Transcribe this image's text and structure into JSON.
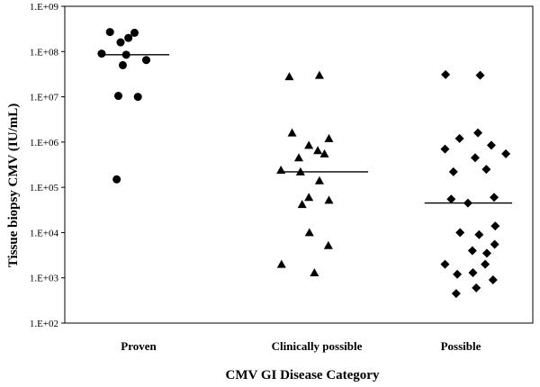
{
  "chart_data": {
    "type": "scatter",
    "ylabel": "Tissue biopsy CMV (IU/mL)",
    "xlabel": "CMV GI Disease Category",
    "y_scale": "log",
    "ylim": [
      100,
      1000000000
    ],
    "y_ticks": [
      "1.E+02",
      "1.E+03",
      "1.E+04",
      "1.E+05",
      "1.E+06",
      "1.E+07",
      "1.E+08",
      "1.E+09"
    ],
    "grid": false,
    "categories": [
      "Proven",
      "Clinically possible",
      "Possible"
    ],
    "series": [
      {
        "category": "Proven",
        "marker": "circle",
        "median": 85000000,
        "points": [
          {
            "x": -0.19,
            "y": 270000000
          },
          {
            "x": 0.25,
            "y": 260000000
          },
          {
            "x": 0.14,
            "y": 200000000
          },
          {
            "x": 0.0,
            "y": 160000000
          },
          {
            "x": -0.34,
            "y": 90000000
          },
          {
            "x": 0.1,
            "y": 85000000
          },
          {
            "x": 0.46,
            "y": 65000000
          },
          {
            "x": 0.04,
            "y": 50000000
          },
          {
            "x": -0.04,
            "y": 10500000
          },
          {
            "x": 0.31,
            "y": 10000000
          },
          {
            "x": -0.07,
            "y": 150000
          }
        ]
      },
      {
        "category": "Clinically possible",
        "marker": "triangle",
        "median": 220000,
        "points": [
          {
            "x": -0.17,
            "y": 28000000
          },
          {
            "x": 0.37,
            "y": 30000000
          },
          {
            "x": -0.12,
            "y": 1600000
          },
          {
            "x": 0.54,
            "y": 1200000
          },
          {
            "x": 0.18,
            "y": 850000
          },
          {
            "x": 0.34,
            "y": 650000
          },
          {
            "x": 0.46,
            "y": 550000
          },
          {
            "x": 0.0,
            "y": 450000
          },
          {
            "x": -0.32,
            "y": 240000
          },
          {
            "x": 0.03,
            "y": 220000
          },
          {
            "x": 0.37,
            "y": 140000
          },
          {
            "x": 0.18,
            "y": 60000
          },
          {
            "x": 0.54,
            "y": 52000
          },
          {
            "x": 0.06,
            "y": 42000
          },
          {
            "x": 0.19,
            "y": 10000
          },
          {
            "x": 0.53,
            "y": 5200
          },
          {
            "x": -0.31,
            "y": 2000
          },
          {
            "x": 0.28,
            "y": 1300
          }
        ]
      },
      {
        "category": "Possible",
        "marker": "diamond",
        "median": 45000,
        "points": [
          {
            "x": 0.05,
            "y": 31000000
          },
          {
            "x": 0.67,
            "y": 30000000
          },
          {
            "x": 0.63,
            "y": 1600000
          },
          {
            "x": 0.3,
            "y": 1200000
          },
          {
            "x": 0.87,
            "y": 850000
          },
          {
            "x": 0.04,
            "y": 700000
          },
          {
            "x": 1.13,
            "y": 550000
          },
          {
            "x": 0.58,
            "y": 450000
          },
          {
            "x": 0.78,
            "y": 250000
          },
          {
            "x": 0.19,
            "y": 220000
          },
          {
            "x": 0.92,
            "y": 60000
          },
          {
            "x": 0.15,
            "y": 55000
          },
          {
            "x": 0.45,
            "y": 45000
          },
          {
            "x": 0.94,
            "y": 14000
          },
          {
            "x": 0.31,
            "y": 10000
          },
          {
            "x": 0.65,
            "y": 9000
          },
          {
            "x": 0.93,
            "y": 5500
          },
          {
            "x": 0.53,
            "y": 4000
          },
          {
            "x": 0.79,
            "y": 3500
          },
          {
            "x": 0.04,
            "y": 2000
          },
          {
            "x": 0.76,
            "y": 2000
          },
          {
            "x": 0.54,
            "y": 1300
          },
          {
            "x": 0.26,
            "y": 1200
          },
          {
            "x": 0.9,
            "y": 900
          },
          {
            "x": 0.6,
            "y": 600
          },
          {
            "x": 0.24,
            "y": 450
          }
        ]
      }
    ]
  }
}
